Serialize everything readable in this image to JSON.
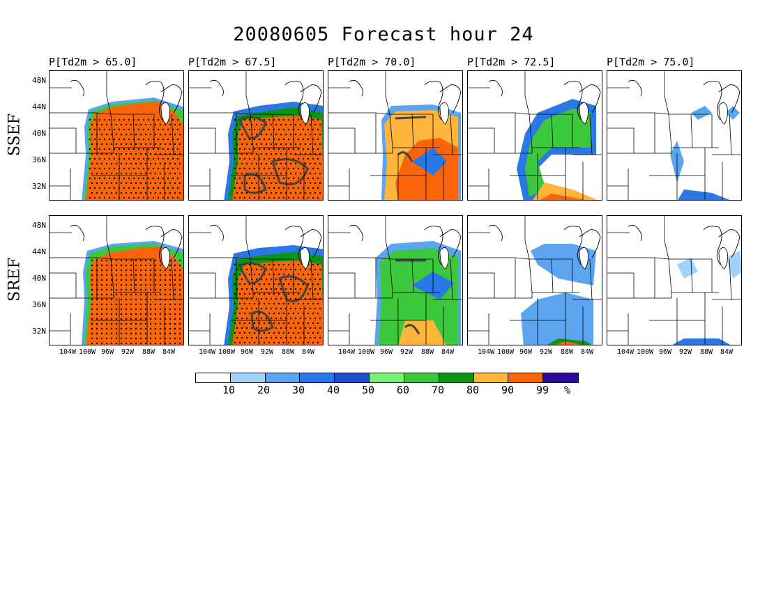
{
  "title": "20080605 Forecast hour 24",
  "columns": [
    {
      "label": "P[Td2m > 65.0]",
      "threshold": 65.0
    },
    {
      "label": "P[Td2m > 67.5]",
      "threshold": 67.5
    },
    {
      "label": "P[Td2m > 70.0]",
      "threshold": 70.0
    },
    {
      "label": "P[Td2m > 72.5]",
      "threshold": 72.5
    },
    {
      "label": "P[Td2m > 75.0]",
      "threshold": 75.0
    }
  ],
  "rows": [
    {
      "label": "SSEF"
    },
    {
      "label": "SREF"
    }
  ],
  "lat_labels": [
    "48N",
    "44N",
    "40N",
    "36N",
    "32N"
  ],
  "lon_labels": [
    "104W",
    "100W",
    "96W",
    "92W",
    "88W",
    "84W"
  ],
  "colorbar": {
    "colors": [
      "#ffffff",
      "#a0d2fa",
      "#5aa4f0",
      "#2a78e6",
      "#1e50c8",
      "#78f078",
      "#3cc83c",
      "#0a9614",
      "#ffb43c",
      "#fa640a",
      "#2a0a96"
    ],
    "labels": [
      "10",
      "20",
      "30",
      "40",
      "50",
      "60",
      "70",
      "80",
      "90",
      "99",
      "%"
    ]
  }
}
